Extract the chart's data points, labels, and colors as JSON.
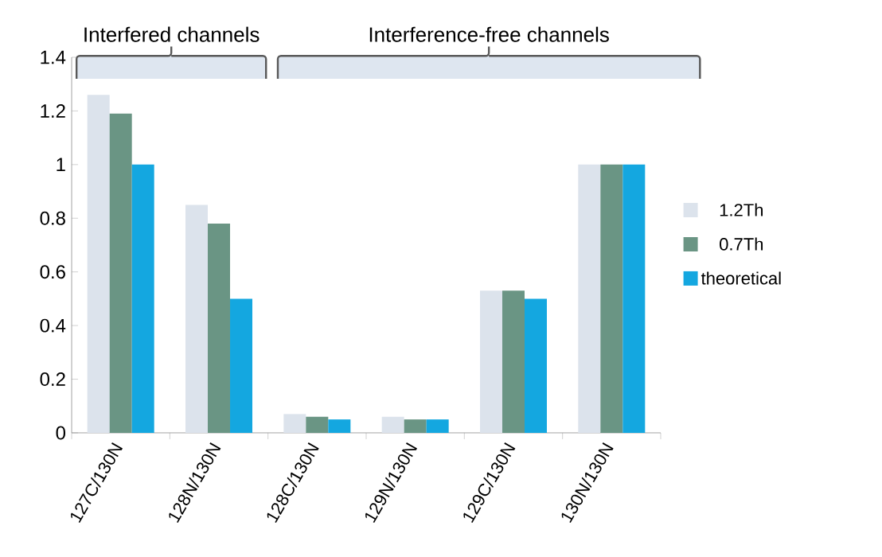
{
  "chart_data": {
    "type": "bar",
    "categories": [
      "127C/130N",
      "128N/130N",
      "128C/130N",
      "129N/130N",
      "129C/130N",
      "130N/130N"
    ],
    "series": [
      {
        "name": "1.2Th",
        "color": "#dce3ec",
        "values": [
          1.26,
          0.85,
          0.07,
          0.06,
          0.53,
          1.0
        ]
      },
      {
        "name": "0.7Th",
        "color": "#6a9584",
        "values": [
          1.19,
          0.78,
          0.06,
          0.05,
          0.53,
          1.0
        ]
      },
      {
        "name": "theoretical",
        "color": "#14a7e0",
        "values": [
          1.0,
          0.5,
          0.05,
          0.05,
          0.5,
          1.0
        ]
      }
    ],
    "ylim": [
      0,
      1.4
    ],
    "yticks": [
      0,
      0.2,
      0.4,
      0.6,
      0.8,
      1,
      1.2,
      1.4
    ],
    "grid": false,
    "legend": "right",
    "annotations": [
      "Interfered channels",
      "Interference-free channels"
    ]
  }
}
